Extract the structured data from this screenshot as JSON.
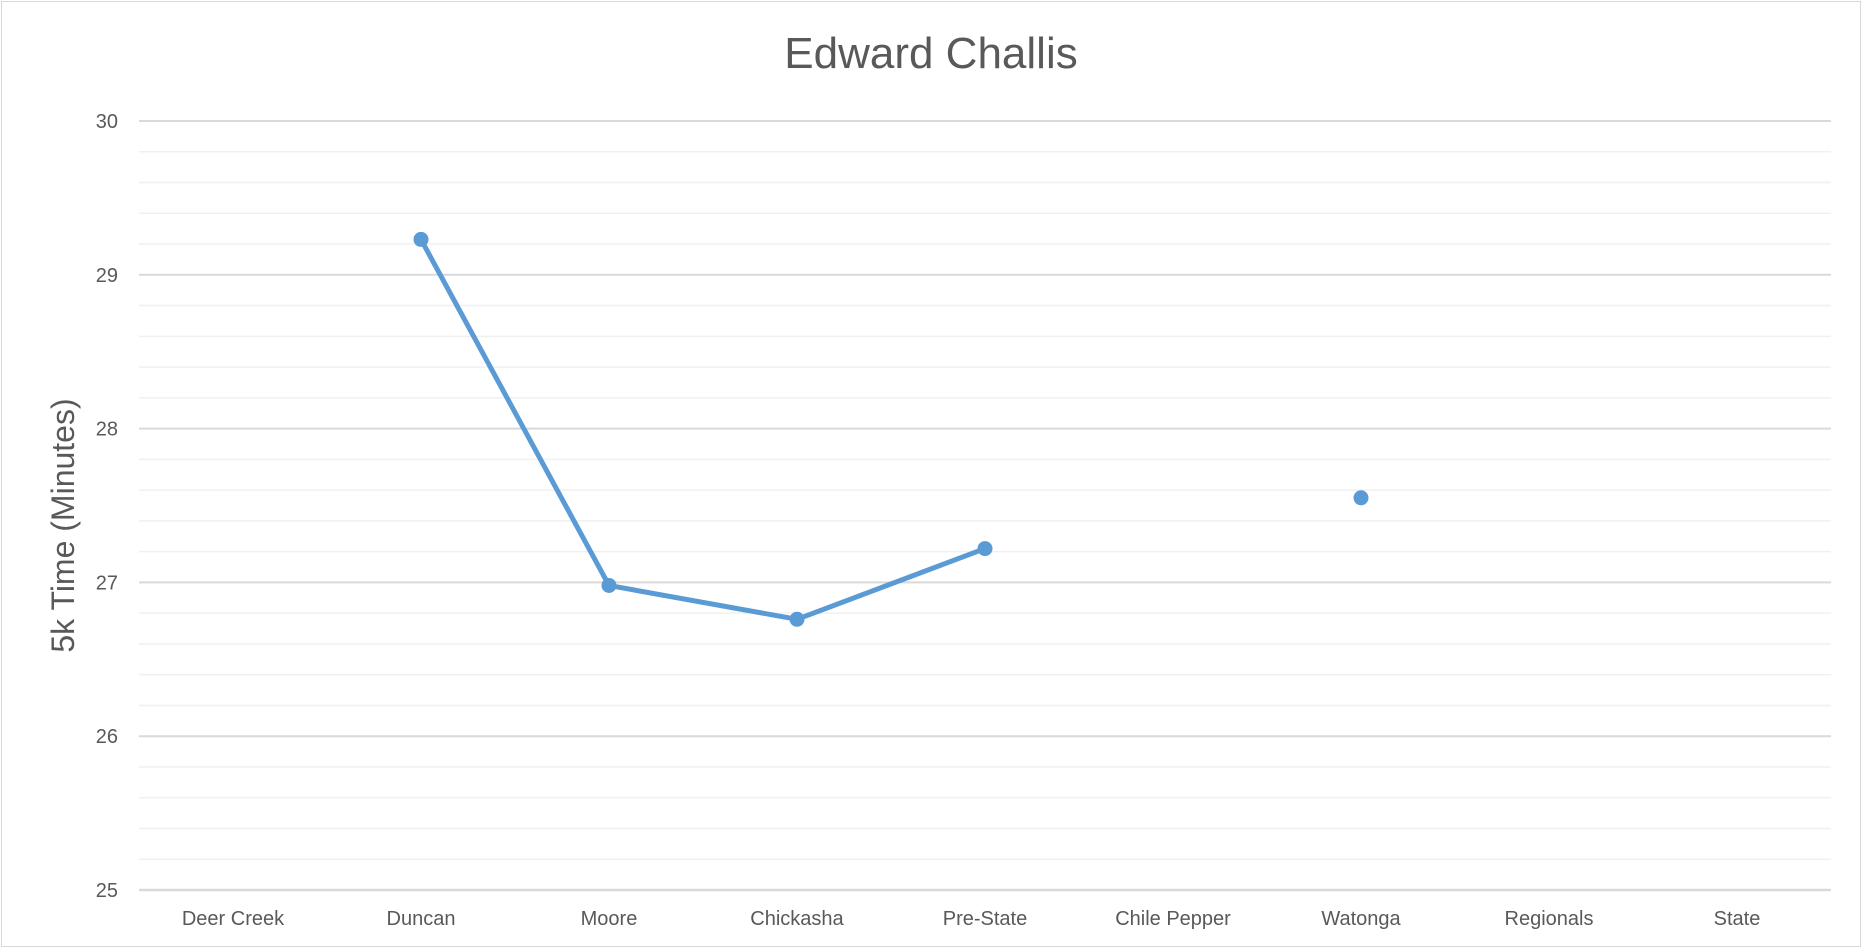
{
  "chart_data": {
    "type": "line",
    "title": "Edward Challis",
    "xlabel": "",
    "ylabel": "5k Time (Minutes)",
    "categories": [
      "Deer Creek",
      "Duncan",
      "Moore",
      "Chickasha",
      "Pre-State",
      "Chile Pepper",
      "Watonga",
      "Regionals",
      "State"
    ],
    "series": [
      {
        "values": [
          null,
          29.23,
          26.98,
          26.76,
          27.22,
          null,
          27.55,
          null,
          null
        ]
      }
    ],
    "ylim": [
      25,
      30
    ],
    "yticks": [
      25,
      26,
      27,
      28,
      29,
      30
    ],
    "minor_gridlines_per_major": 4,
    "grid": true,
    "legend": "none",
    "colors": {
      "series": "#5b9bd5",
      "major_grid": "#d9d9d9",
      "minor_grid": "#f0f0f0",
      "text": "#595959"
    }
  }
}
